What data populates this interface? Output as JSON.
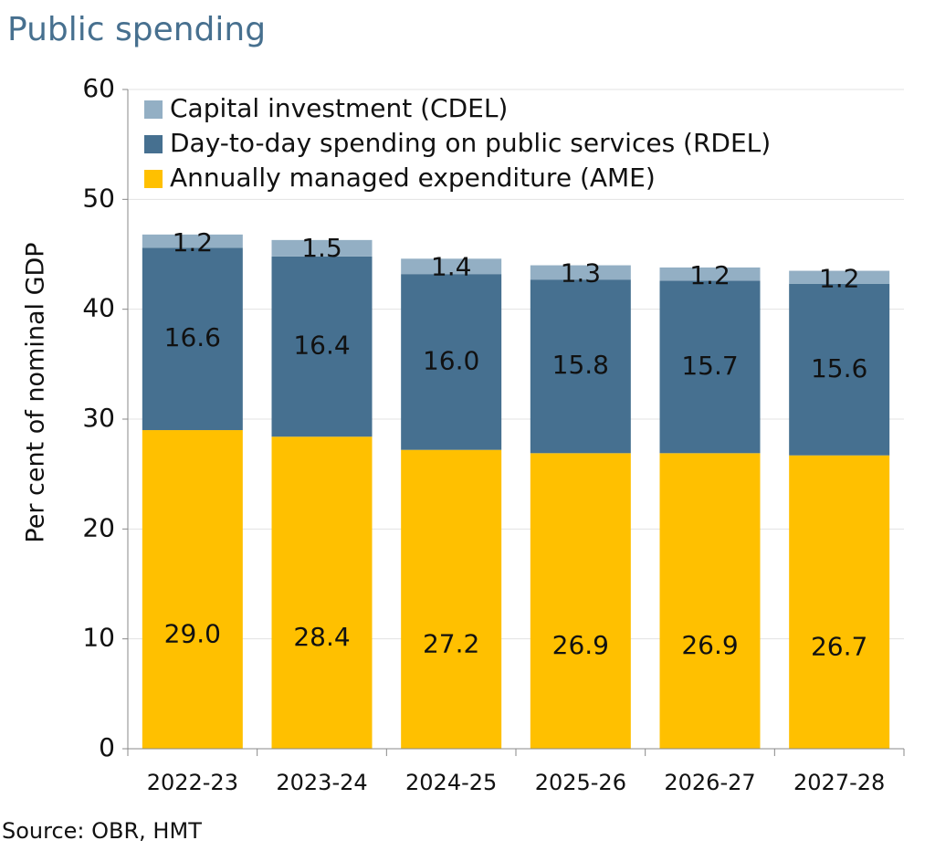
{
  "chart_data": {
    "type": "stacked_bar",
    "title": "Public spending",
    "y_label": "Per cent of nominal GDP",
    "source": "Source: OBR, HMT",
    "categories": [
      "2022-23",
      "2023-24",
      "2024-25",
      "2025-26",
      "2026-27",
      "2027-28"
    ],
    "series": [
      {
        "name": "Annually managed expenditure (AME)",
        "color": "#ffc000",
        "values": [
          29.0,
          28.4,
          27.2,
          26.9,
          26.9,
          26.7
        ],
        "value_labels": [
          "29.0",
          "28.4",
          "27.2",
          "26.9",
          "26.9",
          "26.7"
        ]
      },
      {
        "name": "Day-to-day spending on public services (RDEL)",
        "color": "#467090",
        "values": [
          16.6,
          16.4,
          16.0,
          15.8,
          15.7,
          15.6
        ],
        "value_labels": [
          "16.6",
          "16.4",
          "16.0",
          "15.8",
          "15.7",
          "15.6"
        ]
      },
      {
        "name": "Capital investment (CDEL)",
        "color": "#93afc4",
        "values": [
          1.2,
          1.5,
          1.4,
          1.3,
          1.2,
          1.2
        ],
        "value_labels": [
          "1.2",
          "1.5",
          "1.4",
          "1.3",
          "1.2",
          "1.2"
        ]
      }
    ],
    "ylim": [
      0,
      60
    ],
    "yticks": [
      0,
      10,
      20,
      30,
      40,
      50,
      60
    ],
    "grid": true,
    "legend": "upper left"
  }
}
